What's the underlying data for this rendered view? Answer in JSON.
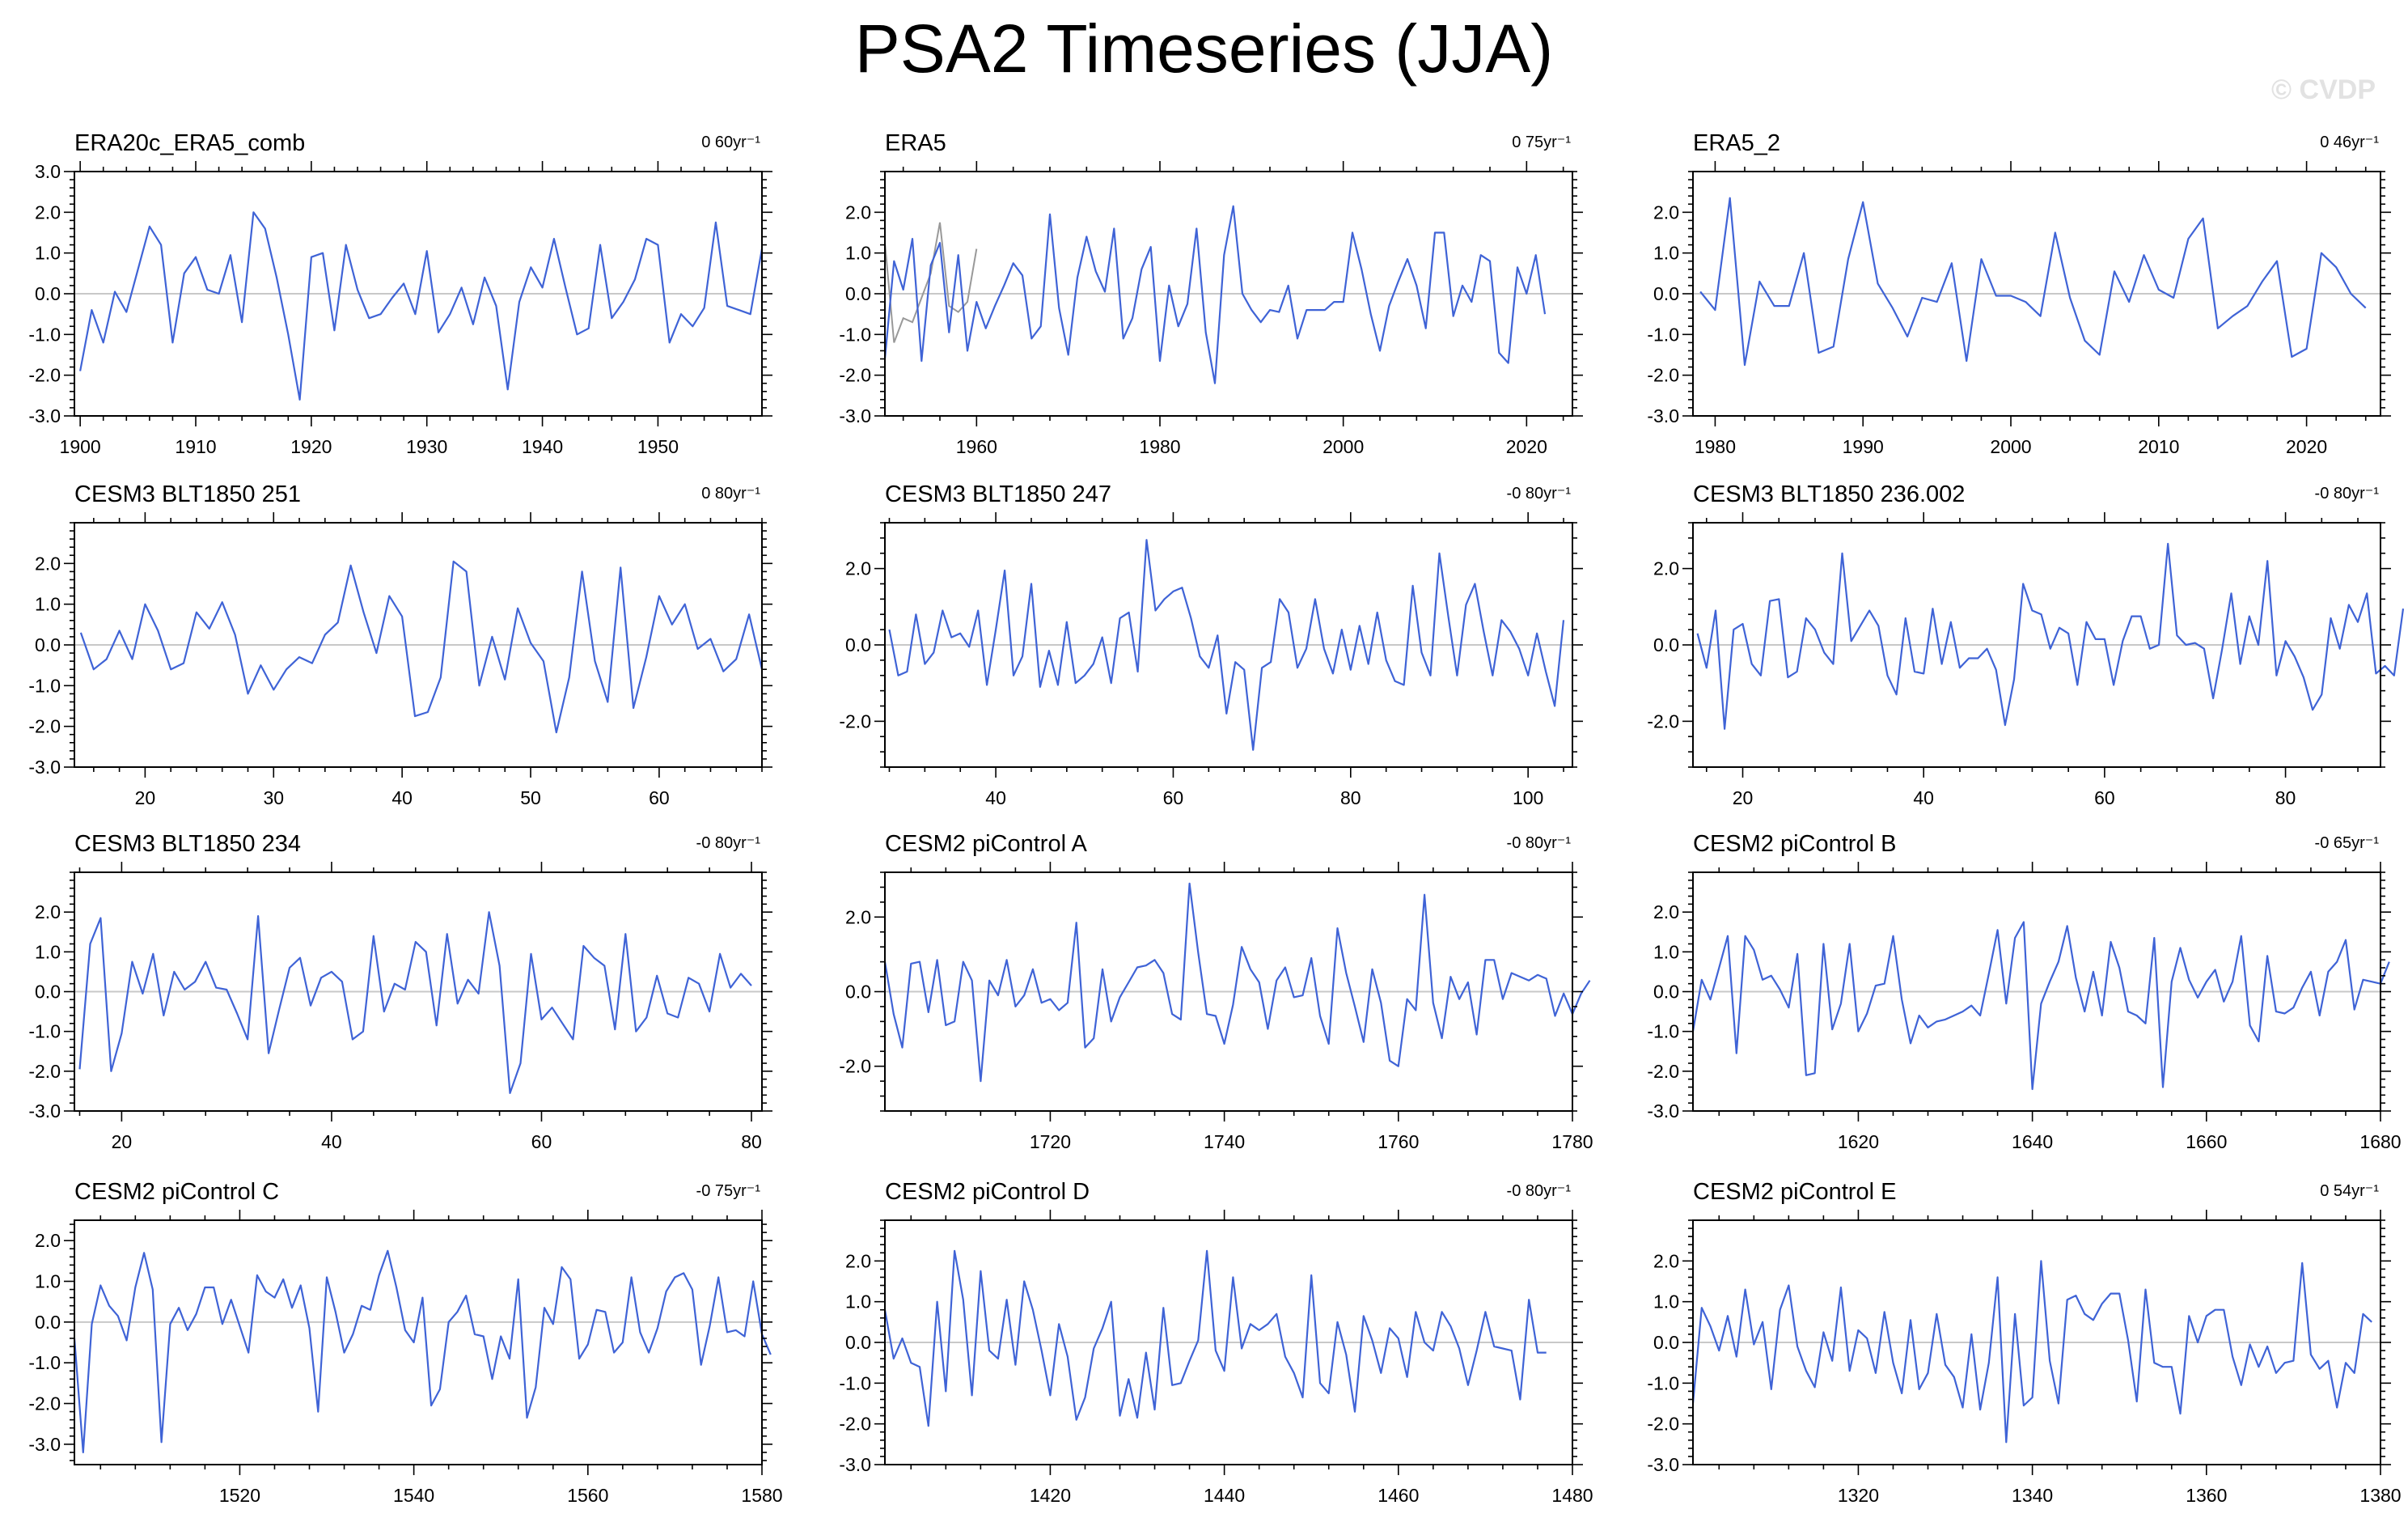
{
  "title": "PSA2 Timeseries (JJA)",
  "watermark": "© CVDP",
  "colors": {
    "series": "#3f63d6",
    "obs_overlay": "#999999",
    "frame": "#000000",
    "zero_line": "#c8c8c8"
  },
  "chart_data": [
    {
      "type": "line",
      "title": "ERA20c_ERA5_comb",
      "trend": "0 60yr⁻¹",
      "xlim": [
        1899.5,
        1959
      ],
      "ylim": [
        -3,
        3
      ],
      "xticks": [
        1900,
        1910,
        1920,
        1930,
        1940,
        1950
      ],
      "yticks": [
        -3,
        -2,
        -1,
        0,
        1,
        2,
        3
      ],
      "ytick_labels": [
        "-3.0",
        "-2.0",
        "-1.0",
        "0.0",
        "1.0",
        "2.0",
        "3.0"
      ],
      "x0": 1900,
      "dx": 1,
      "values": [
        -1.9,
        -0.4,
        -1.2,
        0.05,
        -0.45,
        0.6,
        1.65,
        1.2,
        -1.2,
        0.5,
        0.9,
        0.1,
        0.0,
        0.95,
        -0.7,
        2.0,
        1.6,
        0.4,
        -1.0,
        -2.6,
        0.9,
        1.0,
        -0.9,
        1.2,
        0.1,
        -0.6,
        -0.5,
        -0.1,
        0.25,
        -0.5,
        1.05,
        -0.95,
        -0.5,
        0.15,
        -0.75,
        0.4,
        -0.3,
        -2.35,
        -0.2,
        0.65,
        0.15,
        1.35,
        0.15,
        -1.0,
        -0.85,
        1.2,
        -0.6,
        -0.2,
        0.35,
        1.35,
        1.2,
        -1.2,
        -0.5,
        -0.8,
        -0.35,
        1.75,
        -0.3,
        -0.4,
        -0.5,
        1.1
      ]
    },
    {
      "type": "line",
      "title": "ERA5",
      "trend": "0 75yr⁻¹",
      "xlim": [
        1950,
        2025
      ],
      "ylim": [
        -3,
        3
      ],
      "xticks": [
        1960,
        1980,
        2000,
        2020
      ],
      "yticks": [
        -3,
        -2,
        -1,
        0,
        1,
        2
      ],
      "ytick_labels": [
        "-3.0",
        "-2.0",
        "-1.0",
        "0.0",
        "1.0",
        "2.0"
      ],
      "x0": 1950,
      "dx": 1,
      "values": [
        -1.6,
        0.8,
        0.1,
        1.35,
        -1.65,
        0.7,
        1.25,
        -0.95,
        0.95,
        -1.4,
        -0.2,
        -0.85,
        -0.3,
        0.2,
        0.75,
        0.45,
        -1.1,
        -0.8,
        1.95,
        -0.35,
        -1.5,
        0.4,
        1.4,
        0.55,
        0.05,
        1.6,
        -1.1,
        -0.6,
        0.6,
        1.15,
        -1.65,
        0.2,
        -0.8,
        -0.25,
        1.6,
        -0.95,
        -2.2,
        0.95,
        2.15,
        0.0,
        -0.4,
        -0.7,
        -0.4,
        -0.45,
        0.2,
        -1.1,
        -0.4,
        -0.4,
        -0.4,
        -0.2,
        -0.2,
        1.5,
        0.6,
        -0.5,
        -1.4,
        -0.3,
        0.3,
        0.85,
        0.2,
        -0.85,
        1.5,
        1.5,
        -0.55,
        0.2,
        -0.2,
        0.95,
        0.8,
        -1.45,
        -1.7,
        0.65,
        0.0,
        0.95,
        -0.5
      ],
      "overlay": {
        "x0": 1950,
        "dx": 1,
        "values": [
          1.25,
          -1.2,
          -0.6,
          -0.7,
          -0.1,
          0.5,
          1.75,
          -0.3,
          -0.45,
          -0.2,
          1.1
        ]
      }
    },
    {
      "type": "line",
      "title": "ERA5_2",
      "trend": "0 46yr⁻¹",
      "xlim": [
        1978.5,
        2025
      ],
      "ylim": [
        -3,
        3
      ],
      "xticks": [
        1980,
        1990,
        2000,
        2010,
        2020
      ],
      "yticks": [
        -3,
        -2,
        -1,
        0,
        1,
        2
      ],
      "ytick_labels": [
        "-3.0",
        "-2.0",
        "-1.0",
        "0.0",
        "1.0",
        "2.0"
      ],
      "x0": 1979,
      "dx": 1,
      "values": [
        0.05,
        -0.4,
        2.35,
        -1.75,
        0.3,
        -0.3,
        -0.3,
        1.0,
        -1.45,
        -1.3,
        0.85,
        2.25,
        0.25,
        -0.35,
        -1.05,
        -0.1,
        -0.2,
        0.75,
        -1.65,
        0.85,
        -0.05,
        -0.05,
        -0.2,
        -0.55,
        1.5,
        -0.1,
        -1.15,
        -1.5,
        0.55,
        -0.2,
        0.95,
        0.1,
        -0.1,
        1.35,
        1.85,
        -0.85,
        -0.55,
        -0.3,
        0.3,
        0.8,
        -1.55,
        -1.35,
        1.0,
        0.65,
        0.0,
        -0.35
      ]
    },
    {
      "type": "line",
      "title": "CESM3 BLT1850 251",
      "trend": "0 80yr⁻¹",
      "xlim": [
        14.5,
        68
      ],
      "ylim": [
        -3,
        3
      ],
      "xticks": [
        20,
        30,
        40,
        50,
        60
      ],
      "yticks": [
        -3,
        -2,
        -1,
        0,
        1,
        2
      ],
      "ytick_labels": [
        "-3.0",
        "-2.0",
        "-1.0",
        "0.0",
        "1.0",
        "2.0"
      ],
      "x0": 15,
      "dx": 1,
      "values": [
        0.3,
        -0.6,
        -0.35,
        0.35,
        -0.35,
        1.0,
        0.35,
        -0.6,
        -0.45,
        0.8,
        0.4,
        1.05,
        0.25,
        -1.2,
        -0.5,
        -1.1,
        -0.6,
        -0.3,
        -0.45,
        0.25,
        0.55,
        1.95,
        0.8,
        -0.2,
        1.2,
        0.7,
        -1.75,
        -1.65,
        -0.8,
        2.05,
        1.8,
        -1.0,
        0.2,
        -0.85,
        0.9,
        0.05,
        -0.4,
        -2.15,
        -0.8,
        1.8,
        -0.4,
        -1.4,
        1.9,
        -1.55,
        -0.3,
        1.2,
        0.5,
        1.0,
        -0.1,
        0.15,
        -0.65,
        -0.35,
        0.75,
        -0.6
      ]
    },
    {
      "type": "line",
      "title": "CESM3 BLT1850 247",
      "trend": "-0 80yr⁻¹",
      "xlim": [
        27.5,
        105
      ],
      "ylim": [
        -3.2,
        3.2
      ],
      "xticks": [
        40,
        60,
        80,
        100
      ],
      "yticks": [
        -2,
        0,
        2
      ],
      "ytick_labels": [
        "-2.0",
        "0.0",
        "2.0"
      ],
      "x0": 28,
      "dx": 1,
      "values": [
        0.4,
        -0.8,
        -0.7,
        0.8,
        -0.5,
        -0.2,
        0.9,
        0.2,
        0.3,
        -0.05,
        0.9,
        -1.05,
        0.4,
        1.95,
        -0.8,
        -0.3,
        1.6,
        -1.1,
        -0.15,
        -1.05,
        0.6,
        -1.0,
        -0.8,
        -0.5,
        0.2,
        -1.0,
        0.7,
        0.85,
        -0.7,
        2.75,
        0.9,
        1.2,
        1.4,
        1.5,
        0.7,
        -0.3,
        -0.6,
        0.25,
        -1.8,
        -0.45,
        -0.65,
        -2.75,
        -0.6,
        -0.45,
        1.2,
        0.85,
        -0.6,
        -0.1,
        1.2,
        -0.1,
        -0.75,
        0.4,
        -0.65,
        0.5,
        -0.5,
        0.85,
        -0.4,
        -0.95,
        -1.05,
        1.55,
        -0.2,
        -0.8,
        2.4,
        0.75,
        -0.8,
        1.05,
        1.6,
        0.35,
        -0.8,
        0.65,
        0.35,
        -0.1,
        -0.8,
        0.3,
        -0.7,
        -1.6,
        0.65
      ]
    },
    {
      "type": "line",
      "title": "CESM3 BLT1850 236.002",
      "trend": "-0 80yr⁻¹",
      "xlim": [
        14.5,
        90.5
      ],
      "ylim": [
        -3.2,
        3.2
      ],
      "xticks": [
        20,
        40,
        60,
        80
      ],
      "yticks": [
        -2,
        0,
        2
      ],
      "ytick_labels": [
        "-2.0",
        "0.0",
        "2.0"
      ],
      "x0": 15,
      "dx": 1,
      "values": [
        0.3,
        -0.6,
        0.9,
        -2.2,
        0.4,
        0.55,
        -0.5,
        -0.8,
        1.15,
        1.2,
        -0.85,
        -0.7,
        0.7,
        0.4,
        -0.2,
        -0.5,
        2.4,
        0.1,
        0.5,
        0.9,
        0.5,
        -0.8,
        -1.3,
        0.7,
        -0.7,
        -0.75,
        0.95,
        -0.5,
        0.6,
        -0.6,
        -0.35,
        -0.35,
        -0.1,
        -0.65,
        -2.1,
        -0.9,
        1.6,
        0.9,
        0.8,
        -0.1,
        0.45,
        0.3,
        -1.05,
        0.6,
        0.15,
        0.15,
        -1.05,
        0.1,
        0.75,
        0.75,
        -0.1,
        0.0,
        2.65,
        0.25,
        0.0,
        0.05,
        -0.1,
        -1.4,
        -0.1,
        1.35,
        -0.5,
        0.75,
        0.0,
        2.2,
        -0.8,
        0.1,
        -0.3,
        -0.85,
        -1.7,
        -1.3,
        0.7,
        -0.1,
        1.05,
        0.6,
        1.35,
        -0.75,
        -0.55,
        -0.8,
        0.95
      ]
    },
    {
      "type": "line",
      "title": "CESM3 BLT1850 234",
      "trend": "-0 80yr⁻¹",
      "xlim": [
        15.5,
        81
      ],
      "ylim": [
        -3,
        3
      ],
      "xticks": [
        20,
        40,
        60,
        80
      ],
      "yticks": [
        -3,
        -2,
        -1,
        0,
        1,
        2
      ],
      "ytick_labels": [
        "-3.0",
        "-2.0",
        "-1.0",
        "0.0",
        "1.0",
        "2.0"
      ],
      "x0": 16,
      "dx": 1,
      "values": [
        -1.95,
        1.2,
        1.85,
        -2.0,
        -1.05,
        0.75,
        -0.05,
        0.95,
        -0.6,
        0.5,
        0.05,
        0.25,
        0.75,
        0.1,
        0.05,
        -0.55,
        -1.2,
        1.9,
        -1.55,
        -0.45,
        0.6,
        0.85,
        -0.35,
        0.35,
        0.5,
        0.25,
        -1.2,
        -1.0,
        1.4,
        -0.5,
        0.2,
        0.05,
        1.25,
        1.0,
        -0.85,
        1.45,
        -0.3,
        0.3,
        -0.05,
        2.0,
        0.65,
        -2.55,
        -1.8,
        0.95,
        -0.7,
        -0.4,
        -0.8,
        -1.2,
        1.15,
        0.85,
        0.65,
        -0.95,
        1.45,
        -1.0,
        -0.65,
        0.4,
        -0.55,
        -0.65,
        0.35,
        0.2,
        -0.5,
        0.95,
        0.1,
        0.45,
        0.15
      ]
    },
    {
      "type": "line",
      "title": "CESM2 piControl A",
      "trend": "-0 80yr⁻¹",
      "xlim": [
        1701,
        1780
      ],
      "ylim": [
        -3.2,
        3.2
      ],
      "xticks": [
        1720,
        1740,
        1760,
        1780
      ],
      "yticks": [
        -2,
        0,
        2
      ],
      "ytick_labels": [
        "-2.0",
        "0.0",
        "2.0"
      ],
      "x0": 1701,
      "dx": 1,
      "values": [
        0.8,
        -0.6,
        -1.5,
        0.75,
        0.8,
        -0.55,
        0.85,
        -0.9,
        -0.8,
        0.8,
        0.3,
        -2.4,
        0.3,
        -0.1,
        0.85,
        -0.4,
        -0.1,
        0.6,
        -0.3,
        -0.2,
        -0.5,
        -0.3,
        1.85,
        -1.5,
        -1.25,
        0.6,
        -0.8,
        -0.15,
        0.25,
        0.65,
        0.7,
        0.85,
        0.5,
        -0.6,
        -0.75,
        2.9,
        1.05,
        -0.6,
        -0.65,
        -1.4,
        -0.35,
        1.2,
        0.6,
        0.25,
        -1.0,
        0.3,
        0.65,
        -0.15,
        -0.1,
        0.9,
        -0.65,
        -1.4,
        1.7,
        0.5,
        -0.4,
        -1.35,
        0.6,
        -0.3,
        -1.85,
        -2.0,
        -0.2,
        -0.5,
        2.6,
        -0.3,
        -1.25,
        0.4,
        -0.2,
        0.25,
        -1.15,
        0.85,
        0.85,
        -0.2,
        0.5,
        0.4,
        0.3,
        0.45,
        0.35,
        -0.65,
        -0.05,
        -0.6,
        -0.05,
        0.3
      ]
    },
    {
      "type": "line",
      "title": "CESM2 piControl B",
      "trend": "-0 65yr⁻¹",
      "xlim": [
        1601,
        1680
      ],
      "ylim": [
        -3,
        3
      ],
      "xticks": [
        1620,
        1640,
        1660,
        1680
      ],
      "yticks": [
        -3,
        -2,
        -1,
        0,
        1,
        2
      ],
      "ytick_labels": [
        "-3.0",
        "-2.0",
        "-1.0",
        "0.0",
        "1.0",
        "2.0"
      ],
      "x0": 1601,
      "dx": 1,
      "values": [
        -1.0,
        0.3,
        -0.2,
        0.6,
        1.4,
        -1.55,
        1.4,
        1.05,
        0.3,
        0.4,
        0.05,
        -0.4,
        0.95,
        -2.1,
        -2.05,
        1.2,
        -0.95,
        -0.3,
        1.2,
        -1.0,
        -0.55,
        0.15,
        0.2,
        1.4,
        -0.2,
        -1.3,
        -0.6,
        -0.9,
        -0.75,
        -0.7,
        -0.6,
        -0.5,
        -0.35,
        -0.6,
        0.45,
        1.55,
        -0.3,
        1.35,
        1.75,
        -2.45,
        -0.3,
        0.25,
        0.75,
        1.65,
        0.35,
        -0.5,
        0.5,
        -0.6,
        1.25,
        0.6,
        -0.5,
        -0.6,
        -0.8,
        1.35,
        -2.4,
        0.25,
        1.1,
        0.3,
        -0.15,
        0.25,
        0.55,
        -0.25,
        0.25,
        1.4,
        -0.85,
        -1.25,
        0.9,
        -0.5,
        -0.55,
        -0.4,
        0.1,
        0.5,
        -0.6,
        0.5,
        0.75,
        1.3,
        -0.45,
        0.3,
        0.25,
        0.2,
        0.75
      ]
    },
    {
      "type": "line",
      "title": "CESM2 piControl C",
      "trend": "-0 75yr⁻¹",
      "xlim": [
        1501,
        1580
      ],
      "ylim": [
        -3.5,
        2.5
      ],
      "xticks": [
        1520,
        1540,
        1560,
        1580
      ],
      "yticks": [
        -3,
        -2,
        -1,
        0,
        1,
        2
      ],
      "ytick_labels": [
        "-3.0",
        "-2.0",
        "-1.0",
        "0.0",
        "1.0",
        "2.0"
      ],
      "x0": 1501,
      "dx": 1,
      "values": [
        -0.4,
        -3.2,
        -0.05,
        0.9,
        0.4,
        0.15,
        -0.45,
        0.85,
        1.7,
        0.8,
        -2.95,
        -0.05,
        0.35,
        -0.2,
        0.2,
        0.85,
        0.85,
        -0.05,
        0.55,
        -0.1,
        -0.75,
        1.15,
        0.75,
        0.6,
        1.05,
        0.35,
        0.9,
        -0.15,
        -2.2,
        1.1,
        0.25,
        -0.75,
        -0.3,
        0.4,
        0.3,
        1.15,
        1.75,
        0.85,
        -0.2,
        -0.5,
        0.6,
        -2.05,
        -1.65,
        0.0,
        0.25,
        0.65,
        -0.3,
        -0.35,
        -1.4,
        -0.35,
        -0.9,
        1.05,
        -2.35,
        -1.6,
        0.35,
        -0.05,
        1.35,
        1.05,
        -0.9,
        -0.55,
        0.3,
        0.25,
        -0.75,
        -0.5,
        1.1,
        -0.25,
        -0.75,
        -0.15,
        0.75,
        1.1,
        1.2,
        0.8,
        -1.05,
        -0.1,
        1.1,
        -0.25,
        -0.2,
        -0.35,
        1.0,
        -0.3,
        -0.8
      ]
    },
    {
      "type": "line",
      "title": "CESM2 piControl D",
      "trend": "-0 80yr⁻¹",
      "xlim": [
        1401,
        1480
      ],
      "ylim": [
        -3,
        3
      ],
      "xticks": [
        1420,
        1440,
        1460,
        1480
      ],
      "yticks": [
        -3,
        -2,
        -1,
        0,
        1,
        2
      ],
      "ytick_labels": [
        "-3.0",
        "-2.0",
        "-1.0",
        "0.0",
        "1.0",
        "2.0"
      ],
      "x0": 1401,
      "dx": 1,
      "values": [
        0.8,
        -0.4,
        0.1,
        -0.5,
        -0.6,
        -2.05,
        1.0,
        -1.2,
        2.25,
        1.05,
        -1.3,
        1.75,
        -0.2,
        -0.4,
        1.05,
        -0.55,
        1.5,
        0.8,
        -0.2,
        -1.3,
        0.45,
        -0.35,
        -1.9,
        -1.35,
        -0.15,
        0.35,
        1.0,
        -1.8,
        -0.9,
        -1.85,
        -0.25,
        -1.65,
        0.85,
        -1.05,
        -1.0,
        -0.45,
        0.05,
        2.25,
        -0.2,
        -0.7,
        1.6,
        -0.15,
        0.45,
        0.3,
        0.45,
        0.7,
        -0.35,
        -0.75,
        -1.35,
        1.65,
        -1.0,
        -1.25,
        0.5,
        -0.3,
        -1.7,
        0.65,
        0.05,
        -0.75,
        0.35,
        0.1,
        -0.85,
        0.75,
        0.0,
        -0.2,
        0.75,
        0.4,
        -0.15,
        -1.05,
        -0.2,
        0.75,
        -0.1,
        -0.15,
        -0.2,
        -1.4,
        1.05,
        -0.25,
        -0.25
      ]
    },
    {
      "type": "line",
      "title": "CESM2 piControl E",
      "trend": "0 54yr⁻¹",
      "xlim": [
        1301,
        1380
      ],
      "ylim": [
        -3,
        3
      ],
      "xticks": [
        1320,
        1340,
        1360,
        1380
      ],
      "yticks": [
        -3,
        -2,
        -1,
        0,
        1,
        2
      ],
      "ytick_labels": [
        "-3.0",
        "-2.0",
        "-1.0",
        "0.0",
        "1.0",
        "2.0"
      ],
      "x0": 1301,
      "dx": 1,
      "values": [
        -1.5,
        0.85,
        0.4,
        -0.2,
        0.65,
        -0.35,
        1.3,
        -0.05,
        0.5,
        -1.15,
        0.8,
        1.4,
        -0.1,
        -0.7,
        -1.1,
        0.25,
        -0.45,
        1.35,
        -0.7,
        0.3,
        0.1,
        -0.75,
        0.75,
        -0.5,
        -1.25,
        0.55,
        -1.15,
        -0.75,
        0.7,
        -0.55,
        -0.85,
        -1.6,
        0.2,
        -1.65,
        -0.5,
        1.6,
        -2.45,
        0.7,
        -1.55,
        -1.35,
        2.0,
        -0.45,
        -1.5,
        1.05,
        1.15,
        0.7,
        0.55,
        0.95,
        1.2,
        1.2,
        0.05,
        -1.45,
        1.3,
        -0.5,
        -0.6,
        -0.6,
        -1.75,
        0.65,
        0.0,
        0.65,
        0.8,
        0.8,
        -0.35,
        -1.05,
        -0.05,
        -0.6,
        -0.1,
        -0.75,
        -0.5,
        -0.45,
        1.95,
        -0.3,
        -0.65,
        -0.45,
        -1.6,
        -0.5,
        -0.75,
        0.7,
        0.5
      ]
    }
  ]
}
